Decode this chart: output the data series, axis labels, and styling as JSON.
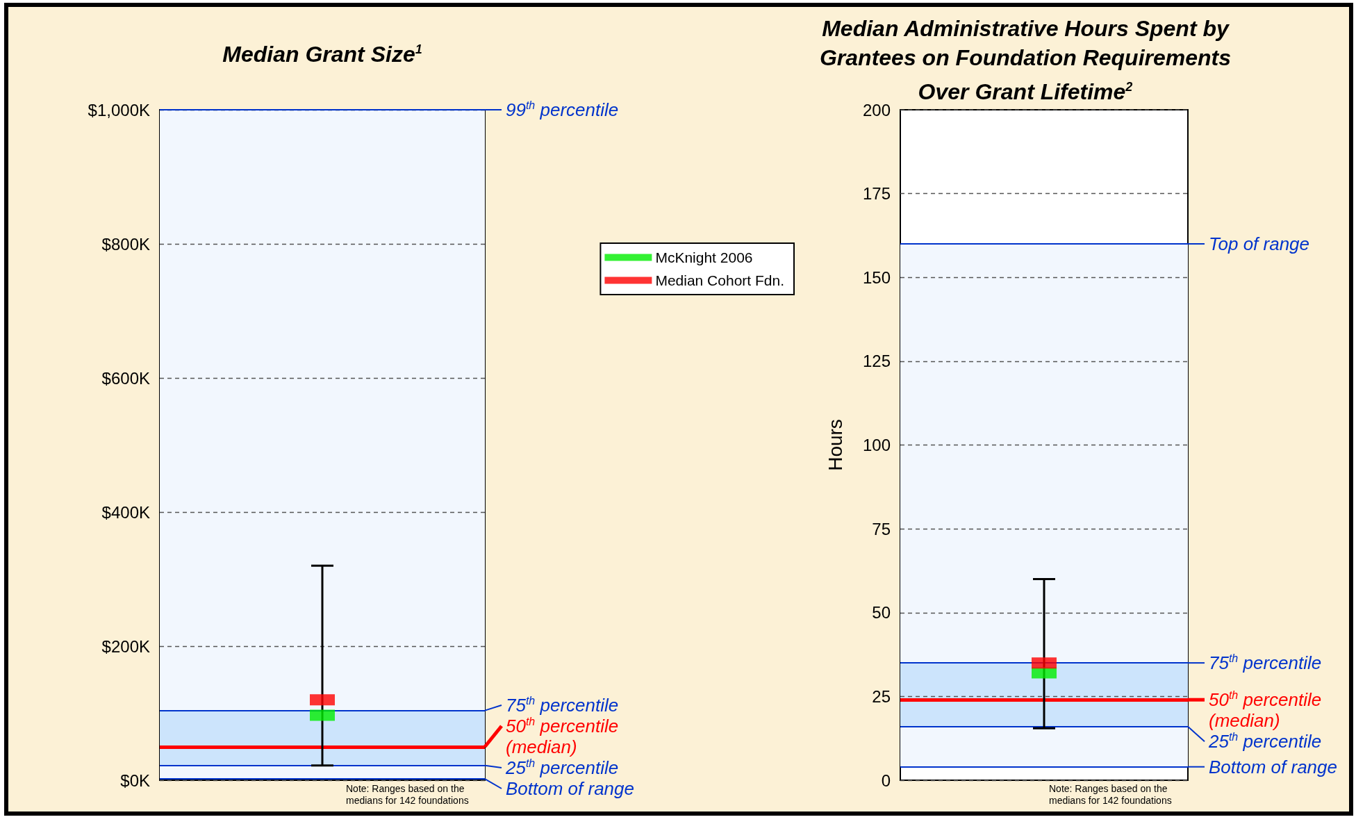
{
  "chart_data": [
    {
      "type": "scatter",
      "title": "Median Grant Size$^{1}$",
      "categories": [
        null
      ],
      "ylim": [
        0,
        1000
      ],
      "yticks": [
        {
          "value": 0,
          "label": "$0K"
        },
        {
          "value": 200,
          "label": "$200K"
        },
        {
          "value": 400,
          "label": "$400K"
        },
        {
          "value": 600,
          "label": "$600K"
        },
        {
          "value": 800,
          "label": "$800K"
        },
        {
          "value": 1000,
          "label": "$1,000K"
        }
      ],
      "grid": "y",
      "legend": "right",
      "marker": "square",
      "series": [
        {
          "name": "McKnight 2006",
          "color": "#00ee00",
          "values": [
            97
          ]
        },
        {
          "name": "Median Cohort Fdn.",
          "color": "#ff0000",
          "values": [
            120
          ],
          "errors": [
            [
              22,
              320
            ]
          ]
        }
      ],
      "bands": [
        {
          "axis": "y",
          "from": 2,
          "to": 1000,
          "color": "#f2f7fe"
        },
        {
          "axis": "y",
          "from": 22,
          "to": 104,
          "color": "#cce4fc"
        }
      ],
      "ref_lines": [
        {
          "axis": "y",
          "value": 1000,
          "label": "99$^{th}$ percentile",
          "color": "#0033cc"
        },
        {
          "axis": "y",
          "value": 104,
          "label": "75$^{th}$ percentile",
          "color": "#0033cc"
        },
        {
          "axis": "y",
          "value": 50,
          "label": "50$^{th}$ percentile (median)",
          "color": "#ff0000"
        },
        {
          "axis": "y",
          "value": 22,
          "label": "25$^{th}$ percentile",
          "color": "#0033cc"
        },
        {
          "axis": "y",
          "value": 2,
          "label": "Bottom of range",
          "color": "#0033cc"
        }
      ],
      "annotations": [
        "Note: Ranges based on the medians for 142 foundations"
      ]
    },
    {
      "type": "scatter",
      "title": "Median Administrative Hours Spent by Grantees on Foundation Requirements Over Grant Lifetime$^{2}$",
      "ylabel": "Hours",
      "categories": [
        null
      ],
      "ylim": [
        0,
        200
      ],
      "yticks": [
        0,
        25,
        50,
        75,
        100,
        125,
        150,
        175,
        200
      ],
      "grid": "y",
      "marker": "square",
      "series": [
        {
          "color": "#00ee00",
          "values": [
            32
          ]
        },
        {
          "color": "#ff0000",
          "values": [
            35
          ],
          "errors": [
            [
              15.5,
              60
            ]
          ]
        }
      ],
      "bands": [
        {
          "axis": "y",
          "from": 4,
          "to": 160,
          "color": "#f2f7fe"
        },
        {
          "axis": "y",
          "from": 16,
          "to": 35,
          "color": "#cce4fc"
        }
      ],
      "ref_lines": [
        {
          "axis": "y",
          "value": 160,
          "label": "Top of range",
          "color": "#0033cc"
        },
        {
          "axis": "y",
          "value": 35,
          "label": "75$^{th}$ percentile",
          "color": "#0033cc"
        },
        {
          "axis": "y",
          "value": 24,
          "label": "50$^{th}$ percentile (median)",
          "color": "#ff0000"
        },
        {
          "axis": "y",
          "value": 16,
          "label": "25$^{th}$ percentile",
          "color": "#0033cc"
        },
        {
          "axis": "y",
          "value": 4,
          "label": "Bottom of range",
          "color": "#0033cc"
        }
      ],
      "annotations": [
        "Note: Ranges based on the medians for 142 foundations"
      ]
    }
  ]
}
